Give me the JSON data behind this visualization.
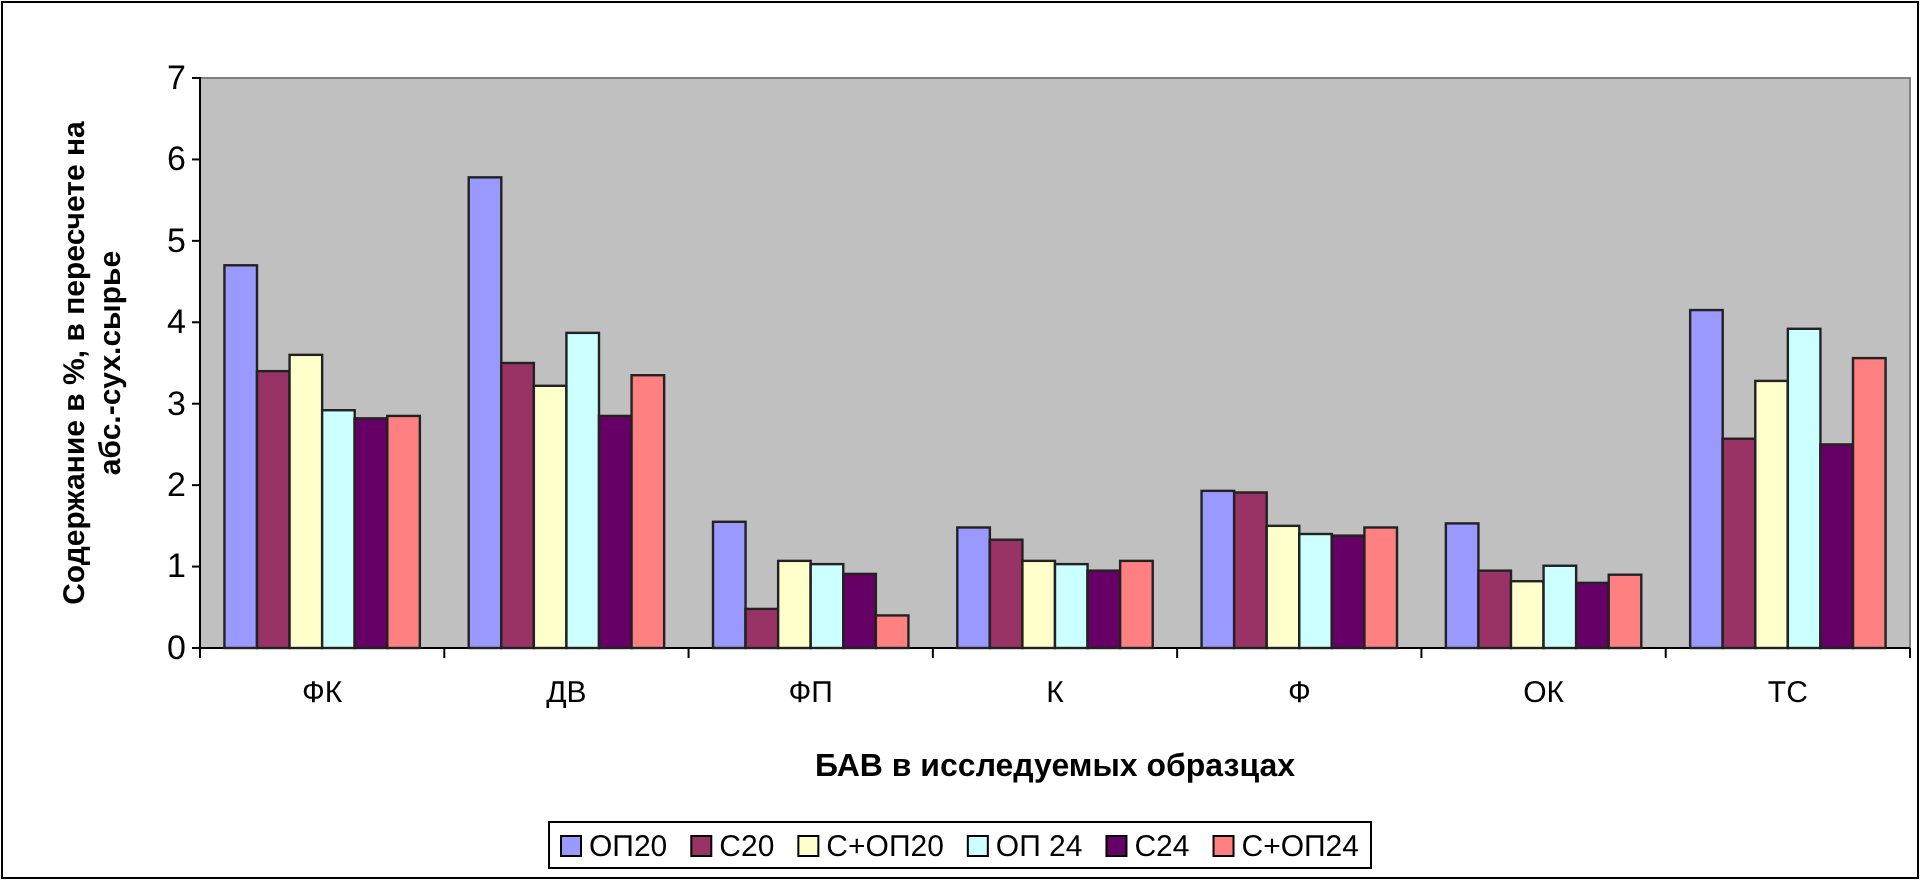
{
  "chart_data": {
    "type": "bar",
    "xlabel": "БАВ в исследуемых образцах",
    "ylabel": "Содержание в %, в пересчете на абс.-сух.сырье",
    "categories": [
      "ФК",
      "ДВ",
      "ФП",
      "К",
      "Ф",
      "ОК",
      "ТС"
    ],
    "series": [
      {
        "name": "ОП20",
        "color": "#9999ff",
        "values": [
          4.7,
          5.78,
          1.55,
          1.48,
          1.93,
          1.53,
          4.15
        ]
      },
      {
        "name": "С20",
        "color": "#993366",
        "values": [
          3.4,
          3.5,
          0.48,
          1.33,
          1.91,
          0.95,
          2.57
        ]
      },
      {
        "name": "С+ОП20",
        "color": "#ffffcc",
        "values": [
          3.6,
          3.22,
          1.07,
          1.07,
          1.5,
          0.82,
          3.28
        ]
      },
      {
        "name": "ОП 24",
        "color": "#ccffff",
        "values": [
          2.92,
          3.87,
          1.03,
          1.03,
          1.4,
          1.01,
          3.92
        ]
      },
      {
        "name": "С24",
        "color": "#660066",
        "values": [
          2.82,
          2.85,
          0.91,
          0.95,
          1.38,
          0.8,
          2.5
        ]
      },
      {
        "name": "С+ОП24",
        "color": "#ff8080",
        "values": [
          2.85,
          3.35,
          0.4,
          1.07,
          1.48,
          0.9,
          3.56
        ]
      }
    ],
    "ylim": [
      0,
      7
    ],
    "yticks": [
      0,
      1,
      2,
      3,
      4,
      5,
      6,
      7
    ],
    "grid": false,
    "legend": "bottom"
  }
}
